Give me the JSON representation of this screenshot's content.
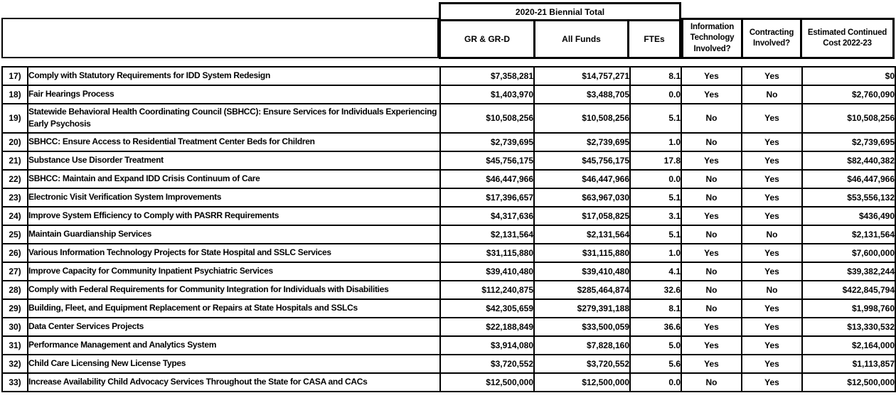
{
  "header": {
    "biennial_title": "2020-21 Biennial Total",
    "gr": "GR & GR-D",
    "all_funds": "All Funds",
    "ftes": "FTEs",
    "it": "Information Technology Involved?",
    "contracting": "Contracting Involved?",
    "est_cost": "Estimated Continued Cost 2022-23"
  },
  "rows": [
    {
      "num": "17)",
      "desc": "Comply with Statutory Requirements for IDD System Redesign",
      "gr": "$7,358,281",
      "all_funds": "$14,757,271",
      "ftes": "8.1",
      "it": "Yes",
      "contracting": "Yes",
      "est_cost": "$0"
    },
    {
      "num": "18)",
      "desc": "Fair Hearings Process",
      "gr": "$1,403,970",
      "all_funds": "$3,488,705",
      "ftes": "0.0",
      "it": "Yes",
      "contracting": "No",
      "est_cost": "$2,760,090"
    },
    {
      "num": "19)",
      "desc": "Statewide Behavioral Health Coordinating Council (SBHCC): Ensure Services for Individuals Experiencing Early Psychosis",
      "gr": "$10,508,256",
      "all_funds": "$10,508,256",
      "ftes": "5.1",
      "it": "No",
      "contracting": "Yes",
      "est_cost": "$10,508,256"
    },
    {
      "num": "20)",
      "desc": "SBHCC: Ensure Access to Residential Treatment Center Beds for Children",
      "gr": "$2,739,695",
      "all_funds": "$2,739,695",
      "ftes": "1.0",
      "it": "No",
      "contracting": "Yes",
      "est_cost": "$2,739,695"
    },
    {
      "num": "21)",
      "desc": "Substance Use Disorder Treatment",
      "gr": "$45,756,175",
      "all_funds": "$45,756,175",
      "ftes": "17.8",
      "it": "Yes",
      "contracting": "Yes",
      "est_cost": "$82,440,382"
    },
    {
      "num": "22)",
      "desc": "SBHCC: Maintain and Expand IDD Crisis Continuum of Care",
      "gr": "$46,447,966",
      "all_funds": "$46,447,966",
      "ftes": "0.0",
      "it": "No",
      "contracting": "Yes",
      "est_cost": "$46,447,966"
    },
    {
      "num": "23)",
      "desc": "Electronic Visit Verification System Improvements",
      "gr": "$17,396,657",
      "all_funds": "$63,967,030",
      "ftes": "5.1",
      "it": "No",
      "contracting": "Yes",
      "est_cost": "$53,556,132"
    },
    {
      "num": "24)",
      "desc": "Improve System Efficiency to Comply with PASRR Requirements",
      "gr": "$4,317,636",
      "all_funds": "$17,058,825",
      "ftes": "3.1",
      "it": "Yes",
      "contracting": "Yes",
      "est_cost": "$436,490"
    },
    {
      "num": "25)",
      "desc": "Maintain Guardianship Services",
      "gr": "$2,131,564",
      "all_funds": "$2,131,564",
      "ftes": "5.1",
      "it": "No",
      "contracting": "No",
      "est_cost": "$2,131,564"
    },
    {
      "num": "26)",
      "desc": "Various Information Technology Projects for State Hospital and SSLC Services",
      "gr": "$31,115,880",
      "all_funds": "$31,115,880",
      "ftes": "1.0",
      "it": "Yes",
      "contracting": "Yes",
      "est_cost": "$7,600,000"
    },
    {
      "num": "27)",
      "desc": "Improve Capacity for Community Inpatient Psychiatric Services",
      "gr": "$39,410,480",
      "all_funds": "$39,410,480",
      "ftes": "4.1",
      "it": "No",
      "contracting": "Yes",
      "est_cost": "$39,382,244"
    },
    {
      "num": "28)",
      "desc": "Comply with Federal Requirements for Community Integration for Individuals with Disabilities",
      "gr": "$112,240,875",
      "all_funds": "$285,464,874",
      "ftes": "32.6",
      "it": "No",
      "contracting": "No",
      "est_cost": "$422,845,794"
    },
    {
      "num": "29)",
      "desc": "Building, Fleet, and Equipment Replacement or Repairs at State Hospitals and SSLCs",
      "gr": "$42,305,659",
      "all_funds": "$279,391,188",
      "ftes": "8.1",
      "it": "No",
      "contracting": "Yes",
      "est_cost": "$1,998,760"
    },
    {
      "num": "30)",
      "desc": "Data Center Services Projects",
      "gr": "$22,188,849",
      "all_funds": "$33,500,059",
      "ftes": "36.6",
      "it": "Yes",
      "contracting": "Yes",
      "est_cost": "$13,330,532"
    },
    {
      "num": "31)",
      "desc": "Performance Management and Analytics System",
      "gr": "$3,914,080",
      "all_funds": "$7,828,160",
      "ftes": "5.0",
      "it": "Yes",
      "contracting": "Yes",
      "est_cost": "$2,164,000"
    },
    {
      "num": "32)",
      "desc": "Child Care Licensing New License Types",
      "gr": "$3,720,552",
      "all_funds": "$3,720,552",
      "ftes": "5.6",
      "it": "Yes",
      "contracting": "Yes",
      "est_cost": "$1,113,857"
    },
    {
      "num": "33)",
      "desc": "Increase Availability Child Advocacy Services Throughout the State for CASA and CACs",
      "gr": "$12,500,000",
      "all_funds": "$12,500,000",
      "ftes": "0.0",
      "it": "No",
      "contracting": "Yes",
      "est_cost": "$12,500,000"
    }
  ]
}
